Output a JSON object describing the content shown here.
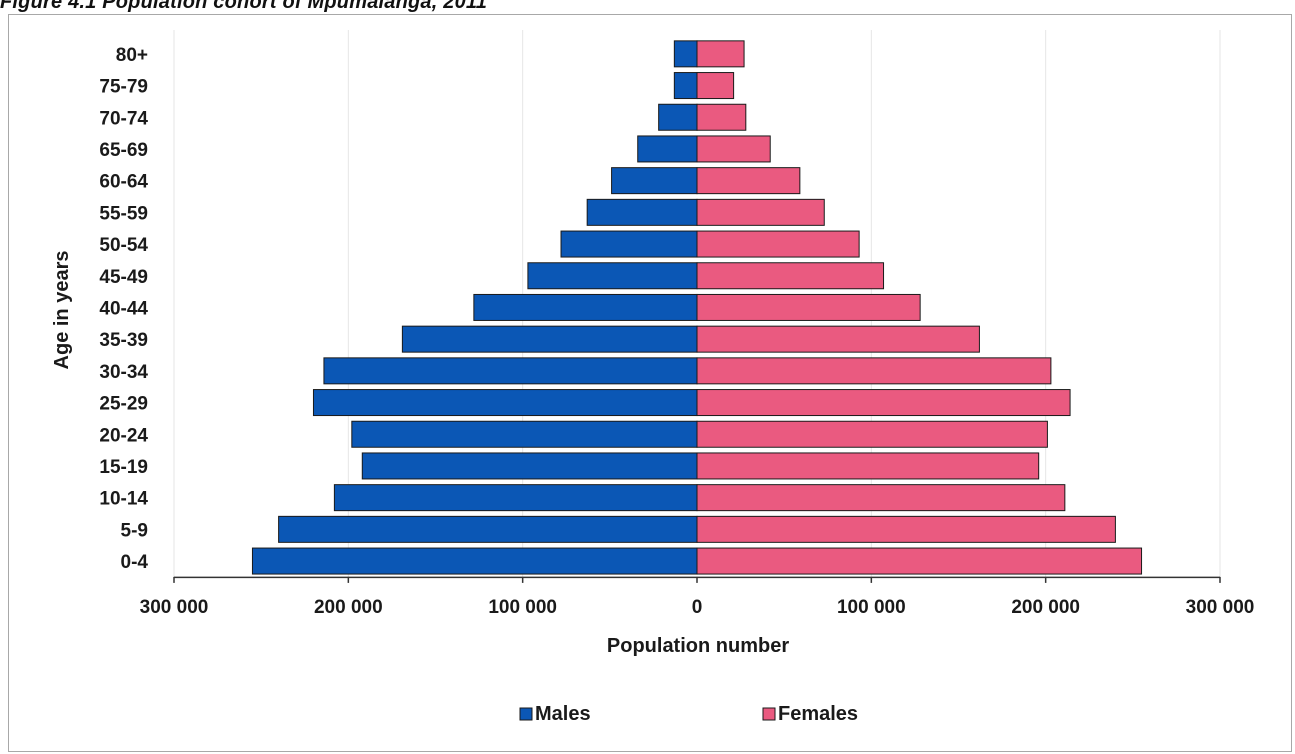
{
  "figure": {
    "title": "Figure 4.1 Population cohort of Mpumalanga, 2011"
  },
  "colors": {
    "males": "#0b57b5",
    "females": "#ea5a80",
    "bar_edge": "#1a1a1a",
    "grid": "#e6e6e6",
    "axis": "#333333"
  },
  "chart_data": {
    "type": "bar",
    "orientation": "horizontal",
    "subtype": "population-pyramid",
    "categories": [
      "0-4",
      "5-9",
      "10-14",
      "15-19",
      "20-24",
      "25-29",
      "30-34",
      "35-39",
      "40-44",
      "45-49",
      "50-54",
      "55-59",
      "60-64",
      "65-69",
      "70-74",
      "75-79",
      "80+"
    ],
    "series": [
      {
        "name": "Males",
        "values": [
          255000,
          240000,
          208000,
          192000,
          198000,
          220000,
          214000,
          169000,
          128000,
          97000,
          78000,
          63000,
          49000,
          34000,
          22000,
          13000,
          13000
        ]
      },
      {
        "name": "Females",
        "values": [
          255000,
          240000,
          211000,
          196000,
          201000,
          214000,
          203000,
          162000,
          128000,
          107000,
          93000,
          73000,
          59000,
          42000,
          28000,
          21000,
          27000
        ]
      }
    ],
    "xlabel": "Population number",
    "ylabel": "Age in years",
    "xlim": [
      -300000,
      300000
    ],
    "xticks": [
      -300000,
      -200000,
      -100000,
      0,
      100000,
      200000,
      300000
    ],
    "xtick_labels": [
      "300 000",
      "200 000",
      "100 000",
      "0",
      "100 000",
      "200 000",
      "300 000"
    ],
    "grid": true,
    "legend": {
      "placement": "bottom",
      "entries": [
        "Males",
        "Females"
      ]
    }
  }
}
